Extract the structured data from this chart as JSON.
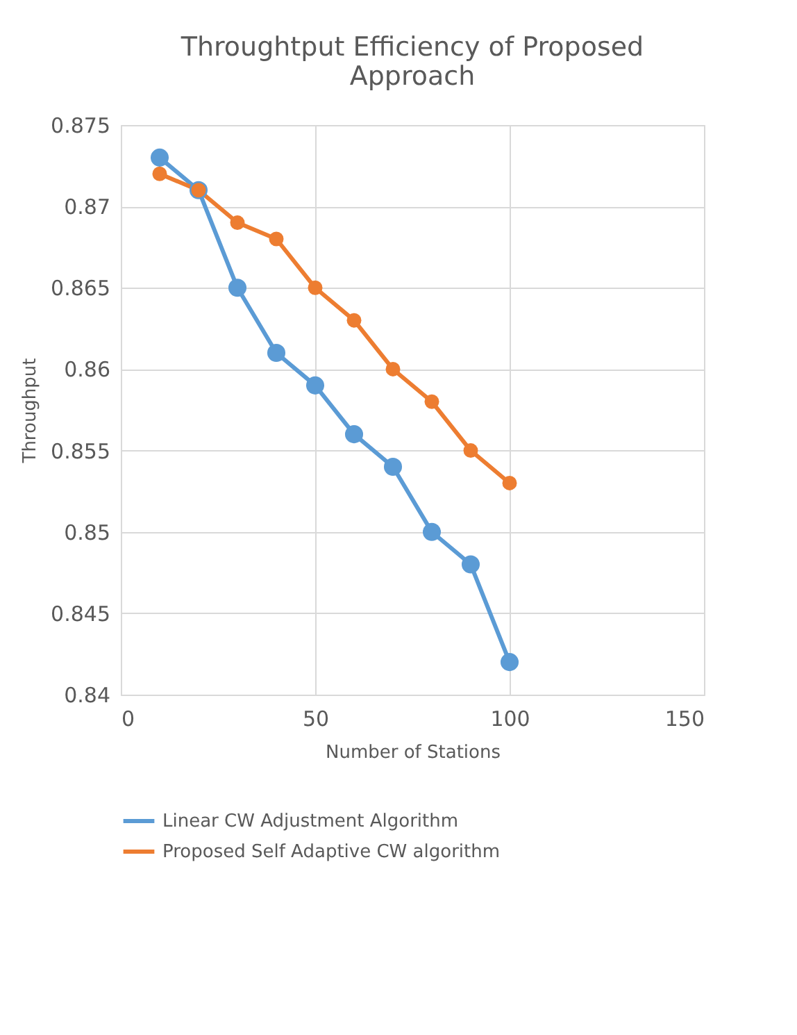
{
  "chart_data": {
    "type": "line",
    "title": "Throughtput Efficiency of Proposed Approach",
    "xlabel": "Number of Stations",
    "ylabel": "Throughput",
    "x": [
      10,
      20,
      30,
      40,
      50,
      60,
      70,
      80,
      90,
      100
    ],
    "series": [
      {
        "name": "Linear CW Adjustment Algorithm",
        "color": "#5b9bd5",
        "values": [
          0.873,
          0.871,
          0.865,
          0.861,
          0.859,
          0.856,
          0.854,
          0.85,
          0.848,
          0.842
        ]
      },
      {
        "name": "Proposed Self Adaptive CW algorithm",
        "color": "#ed7d31",
        "values": [
          0.872,
          0.871,
          0.869,
          0.868,
          0.865,
          0.863,
          0.86,
          0.858,
          0.855,
          0.853
        ]
      }
    ],
    "xlim": [
      0,
      150
    ],
    "xticks": [
      0,
      50,
      100,
      150
    ],
    "ylim": [
      0.84,
      0.875
    ],
    "yticks": [
      0.84,
      0.845,
      0.85,
      0.855,
      0.86,
      0.865,
      0.87,
      0.875
    ],
    "grid": true,
    "legend": "bottom",
    "marker": "circle",
    "line_style": "solid"
  }
}
